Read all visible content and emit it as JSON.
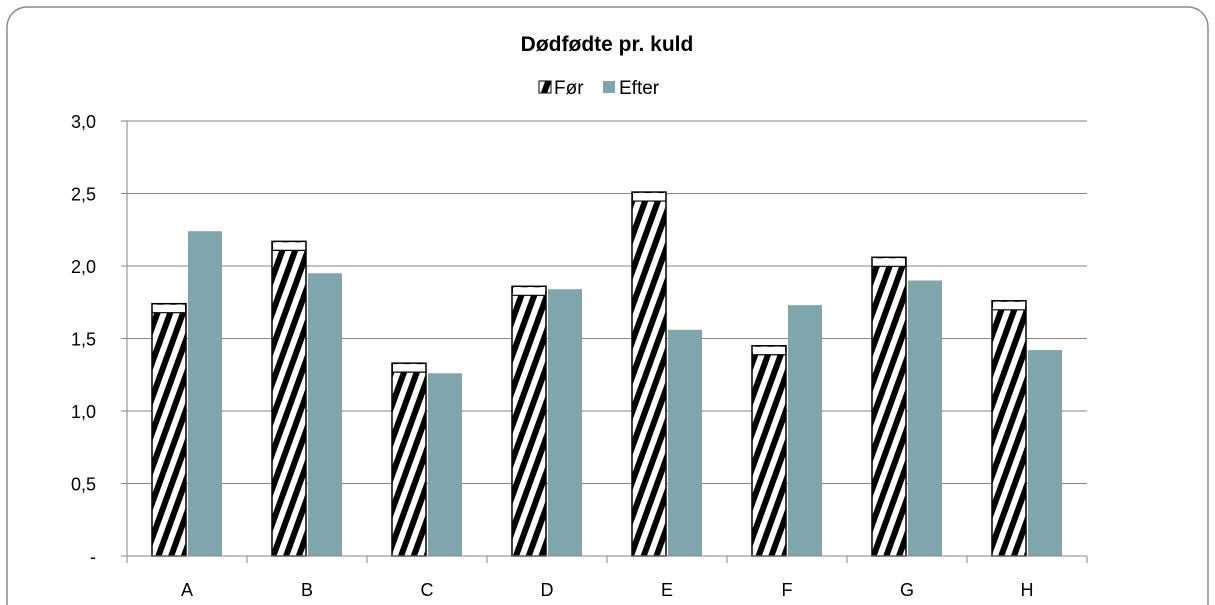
{
  "chart_data": {
    "type": "bar",
    "title": "Dødfødte pr. kuld",
    "xlabel": "",
    "ylabel": "",
    "categories": [
      "A",
      "B",
      "C",
      "D",
      "E",
      "F",
      "G",
      "H"
    ],
    "series": [
      {
        "name": "Før",
        "values": [
          1.74,
          2.17,
          1.33,
          1.86,
          2.51,
          1.45,
          2.06,
          1.76
        ],
        "pattern": "diagonal-stripes"
      },
      {
        "name": "Efter",
        "values": [
          2.24,
          1.95,
          1.26,
          1.84,
          1.56,
          1.73,
          1.9,
          1.42
        ],
        "color": "#7fa6ad"
      }
    ],
    "ylim": [
      0,
      3.0
    ],
    "yticks": [
      "-",
      "0,5",
      "1,0",
      "1,5",
      "2,0",
      "2,5",
      "3,0"
    ],
    "grid": true,
    "legend_position": "top-center"
  }
}
